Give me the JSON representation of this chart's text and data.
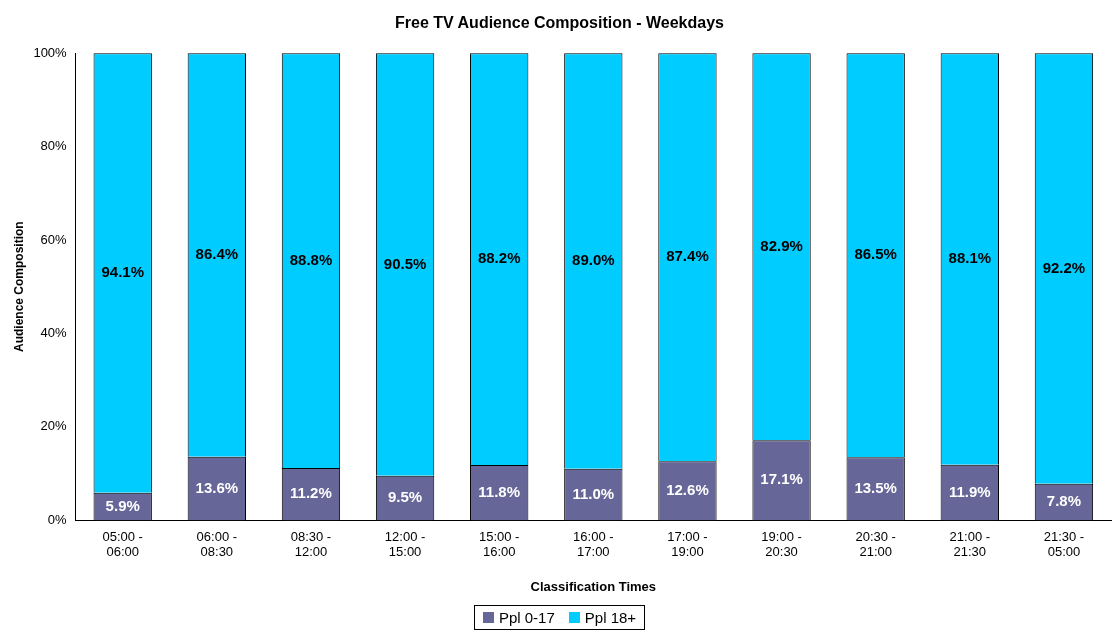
{
  "chart_data": {
    "type": "bar",
    "stacked": true,
    "title": "Free TV Audience Composition - Weekdays",
    "xlabel": "Classification Times",
    "ylabel": "Audience Composition",
    "categories": [
      "05:00 - 06:00",
      "06:00 - 08:30",
      "08:30 - 12:00",
      "12:00 - 15:00",
      "15:00 - 16:00",
      "16:00 - 17:00",
      "17:00 - 19:00",
      "19:00 - 20:30",
      "20:30 - 21:00",
      "21:00 - 21:30",
      "21:30 - 05:00"
    ],
    "series": [
      {
        "name": "Ppl 0-17",
        "color": "#666699",
        "values": [
          5.9,
          13.6,
          11.2,
          9.5,
          11.8,
          11.0,
          12.6,
          17.1,
          13.5,
          11.9,
          7.8
        ],
        "value_labels": [
          "5.9%",
          "13.6%",
          "11.2%",
          "9.5%",
          "11.8%",
          "11.0%",
          "12.6%",
          "17.1%",
          "13.5%",
          "11.9%",
          "7.8%"
        ]
      },
      {
        "name": "Ppl 18+",
        "color": "#00ccff",
        "values": [
          94.1,
          86.4,
          88.8,
          90.5,
          88.2,
          89.0,
          87.4,
          82.9,
          86.5,
          88.1,
          92.2
        ],
        "value_labels": [
          "94.1%",
          "86.4%",
          "88.8%",
          "90.5%",
          "88.2%",
          "89.0%",
          "87.4%",
          "82.9%",
          "86.5%",
          "88.1%",
          "92.2%"
        ]
      }
    ],
    "ylim": [
      0,
      100
    ],
    "yticks": [
      {
        "value": 0,
        "label": "0%"
      },
      {
        "value": 20,
        "label": "20%"
      },
      {
        "value": 40,
        "label": "40%"
      },
      {
        "value": 60,
        "label": "60%"
      },
      {
        "value": 80,
        "label": "80%"
      },
      {
        "value": 100,
        "label": "100%"
      }
    ],
    "grid": false,
    "legend": "bottom"
  }
}
